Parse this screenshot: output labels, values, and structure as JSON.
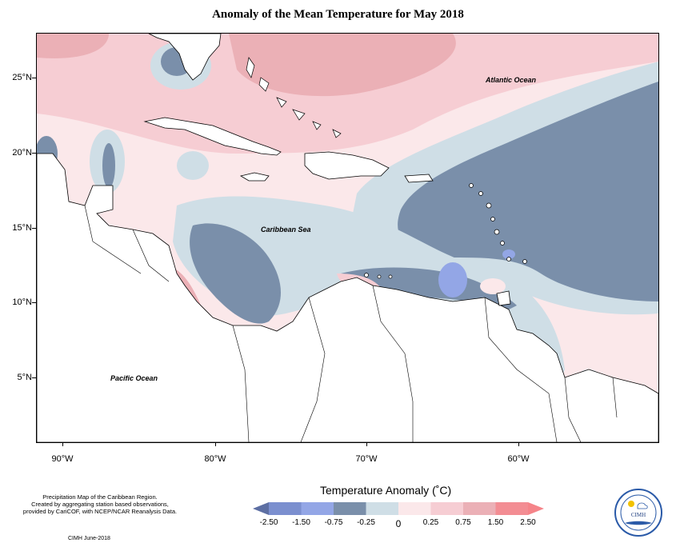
{
  "title": "Anomaly of the Mean Temperature for May 2018",
  "map": {
    "latitude_labels": [
      "25°N",
      "20°N",
      "15°N",
      "10°N",
      "5°N"
    ],
    "longitude_labels": [
      "90°W",
      "80°W",
      "70°W",
      "60°W"
    ],
    "labels": {
      "atlantic": "Atlantic Ocean",
      "caribbean": "Caribbean Sea",
      "pacific": "Pacific Ocean"
    },
    "colors": {
      "land": "#ffffff",
      "coast": "#000000"
    }
  },
  "legend": {
    "title": "Temperature Anomaly (˚C)",
    "tick_labels": [
      "-2.50",
      "-1.50",
      "-0.75",
      "-0.25",
      "0",
      "0.25",
      "0.75",
      "1.50",
      "2.50"
    ],
    "bins": [
      {
        "range": "< -2.50",
        "color": "#5d6fa3"
      },
      {
        "range": "-2.50 to -1.50",
        "color": "#7b8fcf"
      },
      {
        "range": "-1.50 to -0.75",
        "color": "#93a6e6"
      },
      {
        "range": "-0.75 to -0.25",
        "color": "#7a8faa"
      },
      {
        "range": "-0.25 to 0",
        "color": "#cfdee6"
      },
      {
        "range": "0 to 0.25",
        "color": "#fbe8ea"
      },
      {
        "range": "0.25 to 0.75",
        "color": "#f6cdd3"
      },
      {
        "range": "0.75 to 1.50",
        "color": "#ebb0b6"
      },
      {
        "range": "1.50 to 2.50",
        "color": "#f38d93"
      },
      {
        "range": "> 2.50",
        "color": "#f58489"
      }
    ]
  },
  "footer": {
    "description": "Precipitation Map of the Caribbean Region.\nCreated by aggregating station based observations,\nprovided by CariCOF, with NCEP/NCAR Reanalysis Data.",
    "credit": "CIMH June-2018",
    "logo_text": "CIMH"
  }
}
